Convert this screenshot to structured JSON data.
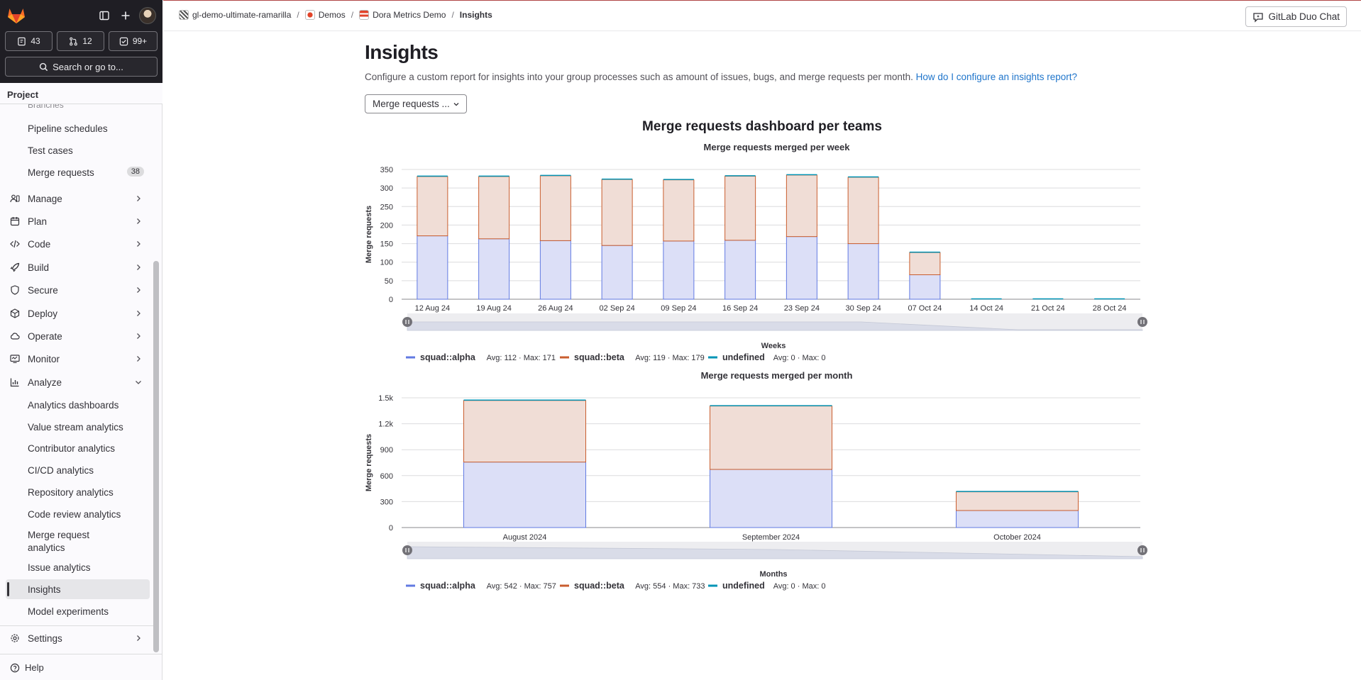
{
  "topbar": {
    "breadcrumb": [
      {
        "label": "gl-demo-ultimate-ramarilla",
        "icon": "group-avatar"
      },
      {
        "label": "Demos",
        "icon": "gitlab-avatar"
      },
      {
        "label": "Dora Metrics Demo",
        "icon": "project-avatar"
      },
      {
        "label": "Insights",
        "icon": ""
      }
    ],
    "duo_chat_label": "GitLab Duo Chat"
  },
  "sidebar": {
    "counters": {
      "issues": "43",
      "merge_requests": "12",
      "todos": "99+"
    },
    "search_label": "Search or go to...",
    "section_title": "Project",
    "faded_item": "Branches",
    "items": [
      {
        "label": "Pipeline schedules"
      },
      {
        "label": "Test cases"
      },
      {
        "label": "Merge requests",
        "badge": "38"
      },
      {
        "label": "Manage"
      },
      {
        "label": "Plan"
      },
      {
        "label": "Code"
      },
      {
        "label": "Build"
      },
      {
        "label": "Secure"
      },
      {
        "label": "Deploy"
      },
      {
        "label": "Operate"
      },
      {
        "label": "Monitor"
      },
      {
        "label": "Analyze"
      },
      {
        "label": "Analytics dashboards"
      },
      {
        "label": "Value stream analytics"
      },
      {
        "label": "Contributor analytics"
      },
      {
        "label": "CI/CD analytics"
      },
      {
        "label": "Repository analytics"
      },
      {
        "label": "Code review analytics"
      },
      {
        "label": "Merge request analytics",
        "line1": "Merge request",
        "line2": "analytics"
      },
      {
        "label": "Issue analytics"
      },
      {
        "label": "Insights"
      },
      {
        "label": "Model experiments"
      }
    ],
    "settings_label": "Settings",
    "help_label": "Help"
  },
  "main": {
    "title": "Insights",
    "description": "Configure a custom report for insights into your group processes such as amount of issues, bugs, and merge requests per month.",
    "help_link": "How do I configure an insights report?",
    "report_select": "Merge requests ...",
    "dashboard_title": "Merge requests dashboard per teams"
  },
  "chart_data": [
    {
      "type": "bar",
      "stacked": true,
      "title": "Merge requests merged per week",
      "xlabel": "Weeks",
      "ylabel": "Merge requests",
      "ylim": [
        0,
        350
      ],
      "yticks": [
        "0",
        "50",
        "100",
        "150",
        "200",
        "250",
        "300",
        "350"
      ],
      "categories": [
        "12 Aug 24",
        "19 Aug 24",
        "26 Aug 24",
        "02 Sep 24",
        "09 Sep 24",
        "16 Sep 24",
        "23 Sep 24",
        "30 Sep 24",
        "07 Oct 24",
        "14 Oct 24",
        "21 Oct 24",
        "28 Oct 24"
      ],
      "series": [
        {
          "name": "squad::alpha",
          "color": "#617ae2",
          "fill": "#dcdff7",
          "stats": "Avg: 112 · Max: 171",
          "values": [
            171,
            163,
            158,
            145,
            157,
            159,
            169,
            150,
            66,
            0,
            0,
            0
          ]
        },
        {
          "name": "squad::beta",
          "color": "#c95d2e",
          "fill": "#f0ddd6",
          "stats": "Avg: 119 · Max: 179",
          "values": [
            160,
            168,
            175,
            178,
            165,
            173,
            166,
            179,
            60,
            0,
            0,
            0
          ]
        },
        {
          "name": "undefined",
          "color": "#0094b6",
          "fill": "#0094b6",
          "stats": "Avg: 0 · Max: 0",
          "values": [
            0,
            0,
            0,
            0,
            0,
            0,
            0,
            0,
            0,
            0,
            0,
            0
          ]
        }
      ]
    },
    {
      "type": "bar",
      "stacked": true,
      "title": "Merge requests merged per month",
      "xlabel": "Months",
      "ylabel": "Merge requests",
      "ylim": [
        0,
        1500
      ],
      "yticks": [
        "0",
        "300",
        "600",
        "900",
        "1.2k",
        "1.5k"
      ],
      "categories": [
        "August 2024",
        "September 2024",
        "October 2024"
      ],
      "series": [
        {
          "name": "squad::alpha",
          "color": "#617ae2",
          "fill": "#dcdff7",
          "stats": "Avg: 542 · Max: 757",
          "values": [
            757,
            672,
            197
          ]
        },
        {
          "name": "squad::beta",
          "color": "#c95d2e",
          "fill": "#f0ddd6",
          "stats": "Avg: 554 · Max: 733",
          "values": [
            712,
            733,
            216
          ]
        },
        {
          "name": "undefined",
          "color": "#0094b6",
          "fill": "#0094b6",
          "stats": "Avg: 0 · Max: 0",
          "values": [
            0,
            0,
            0
          ]
        }
      ]
    }
  ]
}
